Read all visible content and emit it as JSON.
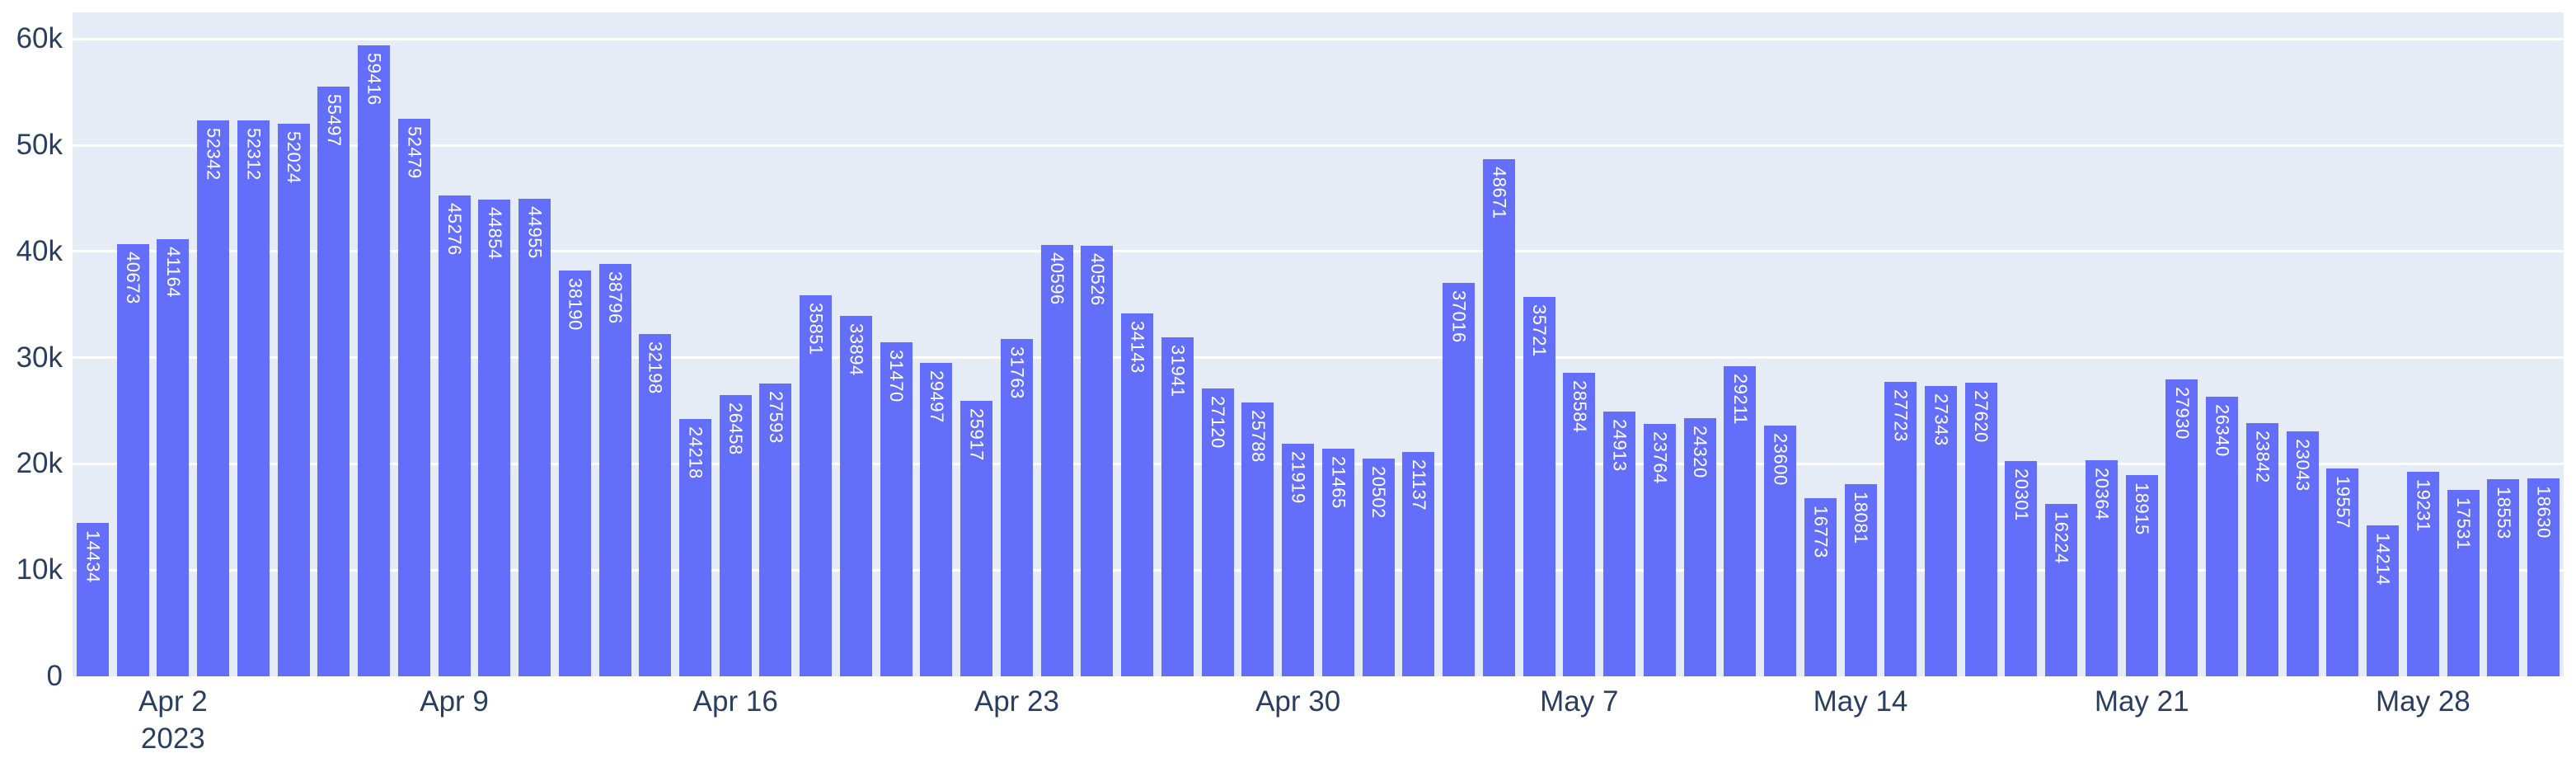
{
  "chart_data": {
    "type": "bar",
    "title": "",
    "xlabel": "",
    "ylabel": "",
    "legend": "none",
    "grid": "horizontal-white",
    "ylim": [
      0,
      62500
    ],
    "x": [
      "2023-03-31",
      "2023-04-01",
      "2023-04-02",
      "2023-04-03",
      "2023-04-04",
      "2023-04-05",
      "2023-04-06",
      "2023-04-07",
      "2023-04-08",
      "2023-04-09",
      "2023-04-10",
      "2023-04-11",
      "2023-04-12",
      "2023-04-13",
      "2023-04-14",
      "2023-04-15",
      "2023-04-16",
      "2023-04-17",
      "2023-04-18",
      "2023-04-19",
      "2023-04-20",
      "2023-04-21",
      "2023-04-22",
      "2023-04-23",
      "2023-04-24",
      "2023-04-25",
      "2023-04-26",
      "2023-04-27",
      "2023-04-28",
      "2023-04-29",
      "2023-04-30",
      "2023-05-01",
      "2023-05-02",
      "2023-05-03",
      "2023-05-04",
      "2023-05-05",
      "2023-05-06",
      "2023-05-07",
      "2023-05-08",
      "2023-05-09",
      "2023-05-10",
      "2023-05-11",
      "2023-05-12",
      "2023-05-13",
      "2023-05-14",
      "2023-05-15",
      "2023-05-16",
      "2023-05-17",
      "2023-05-18",
      "2023-05-19",
      "2023-05-20",
      "2023-05-21",
      "2023-05-22",
      "2023-05-23",
      "2023-05-24",
      "2023-05-25",
      "2023-05-26",
      "2023-05-27",
      "2023-05-28",
      "2023-05-29",
      "2023-05-30",
      "2023-05-31"
    ],
    "values": [
      14434,
      40673,
      41164,
      52342,
      52312,
      52024,
      55497,
      59416,
      52479,
      45276,
      44854,
      44955,
      38190,
      38796,
      32198,
      24218,
      26458,
      27593,
      35851,
      33894,
      31470,
      29497,
      25917,
      31763,
      40596,
      40526,
      34143,
      31941,
      27120,
      25788,
      21919,
      21465,
      20502,
      21137,
      37016,
      48671,
      35721,
      28584,
      24913,
      23764,
      24320,
      29211,
      23600,
      16773,
      18081,
      27723,
      27343,
      27620,
      20301,
      16224,
      20364,
      18915,
      27930,
      26340,
      23842,
      23043,
      19557,
      14214,
      19231,
      17531,
      18553,
      18630
    ],
    "bar_value_labels": [
      "14434",
      "40673",
      "41164",
      "52342",
      "52312",
      "52024",
      "55497",
      "59416",
      "52479",
      "45276",
      "44854",
      "44955",
      "38190",
      "38796",
      "32198",
      "24218",
      "26458",
      "27593",
      "35851",
      "33894",
      "31470",
      "29497",
      "25917",
      "31763",
      "40596",
      "40526",
      "34143",
      "31941",
      "27120",
      "25788",
      "21919",
      "21465",
      "20502",
      "21137",
      "37016",
      "48671",
      "35721",
      "28584",
      "24913",
      "23764",
      "24320",
      "29211",
      "23600",
      "16773",
      "18081",
      "27723",
      "27343",
      "27620",
      "20301",
      "16224",
      "20364",
      "18915",
      "27930",
      "26340",
      "23842",
      "23043",
      "19557",
      "14214",
      "19231",
      "17531",
      "18553",
      "18630"
    ],
    "yticks": [
      {
        "value": 0,
        "label": "0"
      },
      {
        "value": 10000,
        "label": "10k"
      },
      {
        "value": 20000,
        "label": "20k"
      },
      {
        "value": 30000,
        "label": "30k"
      },
      {
        "value": 40000,
        "label": "40k"
      },
      {
        "value": 50000,
        "label": "50k"
      },
      {
        "value": 60000,
        "label": "60k"
      }
    ],
    "xticks": [
      {
        "index": 2,
        "label": "Apr 2",
        "sublabel": "2023"
      },
      {
        "index": 9,
        "label": "Apr 9",
        "sublabel": ""
      },
      {
        "index": 16,
        "label": "Apr 16",
        "sublabel": ""
      },
      {
        "index": 23,
        "label": "Apr 23",
        "sublabel": ""
      },
      {
        "index": 30,
        "label": "Apr 30",
        "sublabel": ""
      },
      {
        "index": 37,
        "label": "May 7",
        "sublabel": ""
      },
      {
        "index": 44,
        "label": "May 14",
        "sublabel": ""
      },
      {
        "index": 51,
        "label": "May 21",
        "sublabel": ""
      },
      {
        "index": 58,
        "label": "May 28",
        "sublabel": ""
      }
    ],
    "colors": {
      "bar": "#636EFA",
      "plot_background": "#E5ECF6",
      "gridline": "#FFFFFF",
      "tick_text": "#2A3F5F",
      "bar_label_text": "#FFFFFF",
      "page_background": "#FFFFFF"
    }
  }
}
